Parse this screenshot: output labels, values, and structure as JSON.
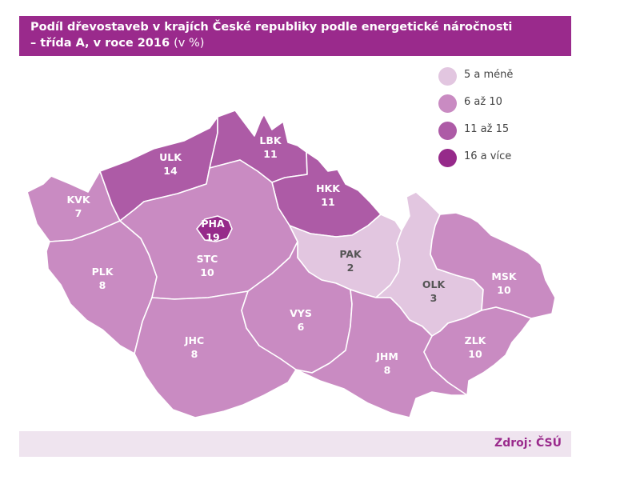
{
  "title": {
    "line1": "Podíl dřevostaveb v krajích České republiky podle energetické náročnosti",
    "line2": "– třída A, v roce 2016",
    "unit": "(v %)"
  },
  "legend": [
    {
      "label": "5 a méně",
      "color": "#e2c6e0"
    },
    {
      "label": "6 až 10",
      "color": "#c98bc2"
    },
    {
      "label": "11 až 15",
      "color": "#ad5ba6"
    },
    {
      "label": "16 a více",
      "color": "#962a8a"
    }
  ],
  "regions": [
    {
      "code": "ULK",
      "value": "14",
      "fill": "#ad5ba6",
      "text_color": "#ffffff"
    },
    {
      "code": "LBK",
      "value": "11",
      "fill": "#ad5ba6",
      "text_color": "#ffffff"
    },
    {
      "code": "HKK",
      "value": "11",
      "fill": "#ad5ba6",
      "text_color": "#ffffff"
    },
    {
      "code": "KVK",
      "value": "7",
      "fill": "#c98bc2",
      "text_color": "#ffffff"
    },
    {
      "code": "PHA",
      "value": "19",
      "fill": "#962a8a",
      "text_color": "#ffffff"
    },
    {
      "code": "STC",
      "value": "10",
      "fill": "#c98bc2",
      "text_color": "#ffffff"
    },
    {
      "code": "PAK",
      "value": "2",
      "fill": "#e2c6e0",
      "text_color": "#555555"
    },
    {
      "code": "PLK",
      "value": "8",
      "fill": "#c98bc2",
      "text_color": "#ffffff"
    },
    {
      "code": "OLK",
      "value": "3",
      "fill": "#e2c6e0",
      "text_color": "#555555"
    },
    {
      "code": "MSK",
      "value": "10",
      "fill": "#c98bc2",
      "text_color": "#ffffff"
    },
    {
      "code": "VYS",
      "value": "6",
      "fill": "#c98bc2",
      "text_color": "#ffffff"
    },
    {
      "code": "JHC",
      "value": "8",
      "fill": "#c98bc2",
      "text_color": "#ffffff"
    },
    {
      "code": "JHM",
      "value": "8",
      "fill": "#c98bc2",
      "text_color": "#ffffff"
    },
    {
      "code": "ZLK",
      "value": "10",
      "fill": "#c98bc2",
      "text_color": "#ffffff"
    }
  ],
  "source": "Zdroj: ČSÚ"
}
